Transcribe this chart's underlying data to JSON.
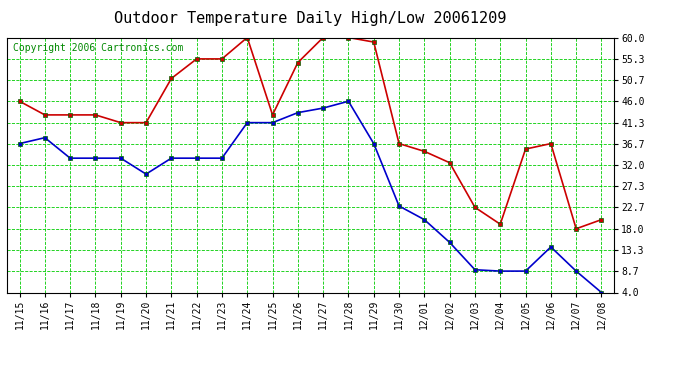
{
  "title": "Outdoor Temperature Daily High/Low 20061209",
  "copyright": "Copyright 2006 Cartronics.com",
  "dates": [
    "11/15",
    "11/16",
    "11/17",
    "11/18",
    "11/19",
    "11/20",
    "11/21",
    "11/22",
    "11/23",
    "11/24",
    "11/25",
    "11/26",
    "11/27",
    "11/28",
    "11/29",
    "11/30",
    "12/01",
    "12/02",
    "12/03",
    "12/04",
    "12/05",
    "12/06",
    "12/07",
    "12/08"
  ],
  "high": [
    46.0,
    43.0,
    43.0,
    43.0,
    41.3,
    41.3,
    51.0,
    55.3,
    55.3,
    60.0,
    43.0,
    54.5,
    60.0,
    60.0,
    59.0,
    36.7,
    35.0,
    32.5,
    22.7,
    19.0,
    35.5,
    36.7,
    18.0,
    20.0
  ],
  "low": [
    36.7,
    38.0,
    33.5,
    33.5,
    33.5,
    30.0,
    33.5,
    33.5,
    33.5,
    41.3,
    41.3,
    43.5,
    44.5,
    46.0,
    36.7,
    23.0,
    20.0,
    15.0,
    9.0,
    8.7,
    8.7,
    14.0,
    8.7,
    4.0
  ],
  "high_color": "#cc0000",
  "low_color": "#0000cc",
  "marker": "s",
  "marker_size": 3,
  "bg_color": "#ffffff",
  "plot_bg_color": "#ffffff",
  "grid_color": "#00cc00",
  "grid_minor_color": "#00cc00",
  "yticks": [
    4.0,
    8.7,
    13.3,
    18.0,
    22.7,
    27.3,
    32.0,
    36.7,
    41.3,
    46.0,
    50.7,
    55.3,
    60.0
  ],
  "title_fontsize": 11,
  "copyright_fontsize": 7,
  "tick_fontsize": 7
}
